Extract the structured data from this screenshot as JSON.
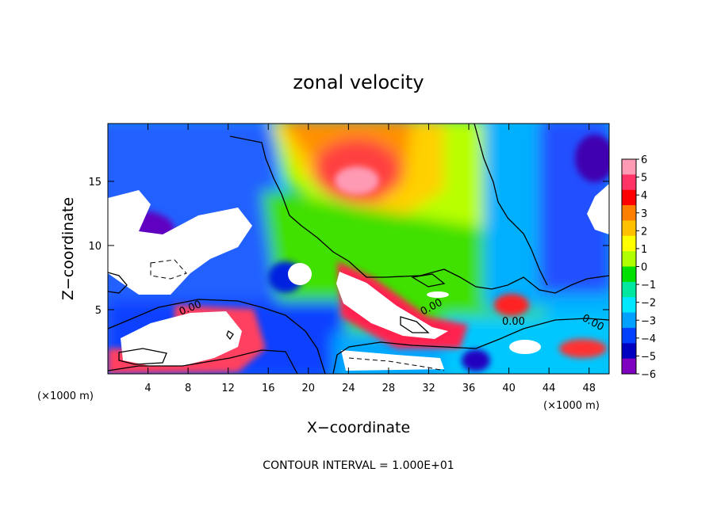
{
  "chart_data": {
    "type": "heatmap",
    "title": "zonal velocity",
    "xlabel": "X−coordinate",
    "ylabel": "Z−coordinate",
    "x_unit_left": "(×1000 m)",
    "x_unit_right": "(×1000 m)",
    "xlim": [
      0,
      50
    ],
    "ylim": [
      0,
      19.5
    ],
    "x_ticks": [
      4,
      8,
      12,
      16,
      20,
      24,
      28,
      32,
      36,
      40,
      44,
      48
    ],
    "y_ticks": [
      5,
      10,
      15
    ],
    "colorbar": {
      "ticks": [
        "6",
        "5",
        "4",
        "3",
        "2",
        "1",
        "0",
        "−1",
        "−2",
        "−3",
        "−4",
        "−5",
        "−6"
      ],
      "range": [
        -6,
        6
      ],
      "colors": [
        "#ff9ab4",
        "#ff3366",
        "#ff0000",
        "#ff8000",
        "#ffc000",
        "#ffff00",
        "#b0ff00",
        "#00e000",
        "#00e8a0",
        "#00e8ff",
        "#00a0ff",
        "#0040ff",
        "#0000c0",
        "#8000c0"
      ]
    },
    "contour_labels": [
      "0.00",
      "0.00",
      "0.00",
      "0.00"
    ],
    "contour_interval": "CONTOUR INTERVAL = 1.000E+01"
  },
  "colors": {
    "background": "#ffffff",
    "frame": "#000000"
  }
}
